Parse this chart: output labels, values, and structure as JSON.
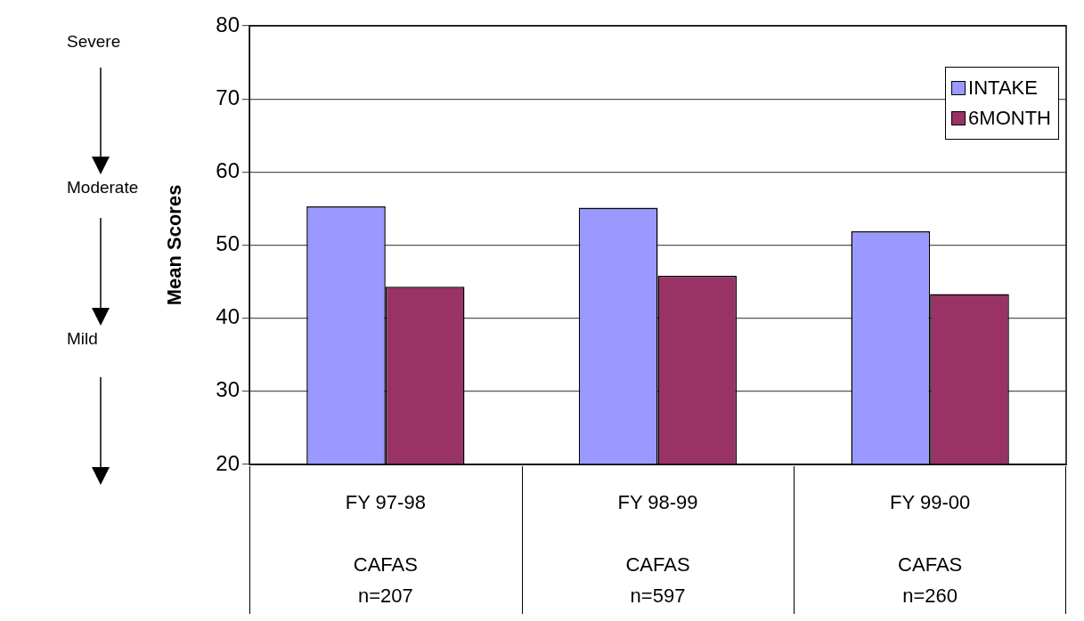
{
  "chart_data": {
    "type": "bar",
    "ylabel": "Mean Scores",
    "categories": [
      "FY 97-98\nCAFAS\nn=207",
      "FY 98-99\nCAFAS\nn=597",
      "FY 99-00\nCAFAS\nn=260"
    ],
    "series": [
      {
        "name": "INTAKE",
        "color": "#9999ff",
        "values": [
          55.3,
          55.1,
          51.9
        ]
      },
      {
        "name": "6MONTH",
        "color": "#993366",
        "values": [
          44.3,
          45.8,
          43.3
        ]
      }
    ],
    "ylim": [
      20,
      80
    ],
    "yticks": [
      20,
      30,
      40,
      50,
      60,
      70,
      80
    ],
    "grid": "y",
    "legend": "top right",
    "annotations": [
      "Severe",
      "Moderate",
      "Mild"
    ]
  }
}
